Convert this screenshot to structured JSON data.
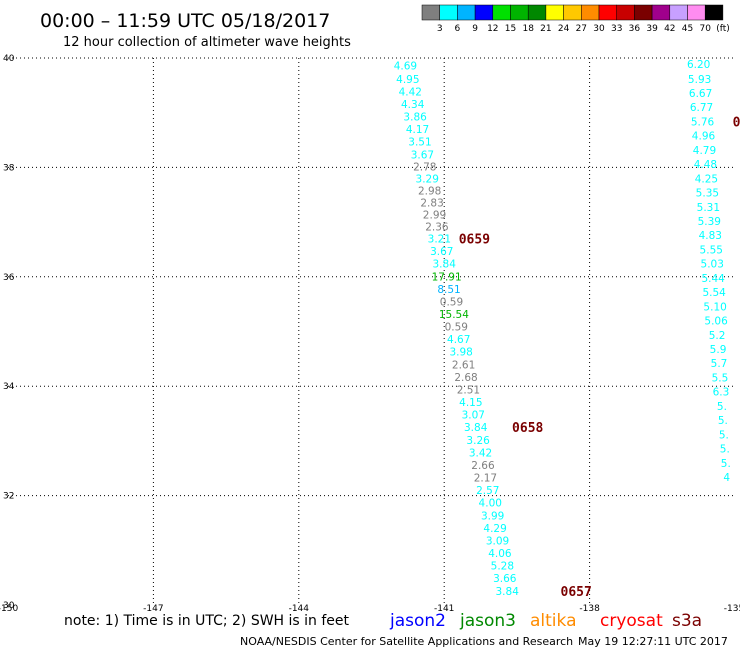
{
  "header": {
    "title": "00:00 – 11:59 UTC 05/18/2017",
    "subtitle": "12 hour collection of altimeter wave heights"
  },
  "colorbar": {
    "unit": "(ft)",
    "labels": [
      "3",
      "6",
      "9",
      "12",
      "15",
      "18",
      "21",
      "24",
      "27",
      "30",
      "33",
      "36",
      "39",
      "42",
      "45",
      "70"
    ],
    "colors": [
      "#7f7f7f",
      "#00ffff",
      "#00b4ff",
      "#0000ff",
      "#00e000",
      "#00b400",
      "#008800",
      "#ffff00",
      "#ffc800",
      "#ff8c00",
      "#ff0000",
      "#c80000",
      "#7a0000",
      "#a0008c",
      "#c8a0ff",
      "#ff8cf0",
      "#000000"
    ]
  },
  "chart_data": {
    "type": "scatter",
    "xlim": [
      -150,
      -135
    ],
    "ylim": [
      30,
      40
    ],
    "xticks": [
      "-150",
      "-147",
      "-144",
      "-141",
      "-138",
      "-135"
    ],
    "yticks": [
      "30",
      "32",
      "34",
      "36",
      "38",
      "40"
    ],
    "grid": true,
    "tracks": [
      {
        "name": "track-a",
        "points": [
          {
            "lon": -141.8,
            "lat": 39.86,
            "value": "4.69",
            "color": "#00ffff"
          },
          {
            "lon": -141.75,
            "lat": 39.62,
            "value": "4.95",
            "color": "#00ffff"
          },
          {
            "lon": -141.7,
            "lat": 39.39,
            "value": "4.42",
            "color": "#00ffff"
          },
          {
            "lon": -141.65,
            "lat": 39.16,
            "value": "4.34",
            "color": "#00ffff"
          },
          {
            "lon": -141.6,
            "lat": 38.93,
            "value": "3.86",
            "color": "#00ffff"
          },
          {
            "lon": -141.55,
            "lat": 38.7,
            "value": "4.17",
            "color": "#00ffff"
          },
          {
            "lon": -141.5,
            "lat": 38.47,
            "value": "3.51",
            "color": "#00ffff"
          },
          {
            "lon": -141.45,
            "lat": 38.24,
            "value": "3.67",
            "color": "#00ffff"
          },
          {
            "lon": -141.4,
            "lat": 38.02,
            "value": "2.78",
            "color": "#7f7f7f"
          },
          {
            "lon": -141.35,
            "lat": 37.8,
            "value": "3.29",
            "color": "#00ffff"
          },
          {
            "lon": -141.3,
            "lat": 37.58,
            "value": "2.98",
            "color": "#7f7f7f"
          },
          {
            "lon": -141.25,
            "lat": 37.36,
            "value": "2.83",
            "color": "#7f7f7f"
          },
          {
            "lon": -141.2,
            "lat": 37.14,
            "value": "2.99",
            "color": "#7f7f7f"
          },
          {
            "lon": -141.15,
            "lat": 36.92,
            "value": "2.36",
            "color": "#7f7f7f"
          },
          {
            "lon": -141.1,
            "lat": 36.7,
            "value": "3.21",
            "color": "#00ffff"
          },
          {
            "lon": -141.05,
            "lat": 36.47,
            "value": "3.67",
            "color": "#00ffff"
          },
          {
            "lon": -141.0,
            "lat": 36.24,
            "value": "3.84",
            "color": "#00ffff"
          },
          {
            "lon": -140.95,
            "lat": 36.01,
            "value": "17.91",
            "color": "#00b400"
          },
          {
            "lon": -140.9,
            "lat": 35.78,
            "value": "8.51",
            "color": "#00b4ff"
          },
          {
            "lon": -140.85,
            "lat": 35.55,
            "value": "0.59",
            "color": "#7f7f7f"
          },
          {
            "lon": -140.8,
            "lat": 35.32,
            "value": "15.54",
            "color": "#00b400"
          },
          {
            "lon": -140.75,
            "lat": 35.09,
            "value": "0.59",
            "color": "#7f7f7f"
          },
          {
            "lon": -140.7,
            "lat": 34.86,
            "value": "4.67",
            "color": "#00ffff"
          },
          {
            "lon": -140.65,
            "lat": 34.63,
            "value": "3.98",
            "color": "#00ffff"
          },
          {
            "lon": -140.6,
            "lat": 34.4,
            "value": "2.61",
            "color": "#7f7f7f"
          },
          {
            "lon": -140.55,
            "lat": 34.17,
            "value": "2.68",
            "color": "#7f7f7f"
          },
          {
            "lon": -140.5,
            "lat": 33.94,
            "value": "2.51",
            "color": "#7f7f7f"
          },
          {
            "lon": -140.45,
            "lat": 33.71,
            "value": "4.15",
            "color": "#00ffff"
          },
          {
            "lon": -140.4,
            "lat": 33.48,
            "value": "3.07",
            "color": "#00ffff"
          },
          {
            "lon": -140.35,
            "lat": 33.25,
            "value": "3.84",
            "color": "#00ffff"
          },
          {
            "lon": -140.3,
            "lat": 33.02,
            "value": "3.26",
            "color": "#00ffff"
          },
          {
            "lon": -140.25,
            "lat": 32.79,
            "value": "3.42",
            "color": "#00ffff"
          },
          {
            "lon": -140.2,
            "lat": 32.56,
            "value": "2.66",
            "color": "#7f7f7f"
          },
          {
            "lon": -140.15,
            "lat": 32.33,
            "value": "2.17",
            "color": "#7f7f7f"
          },
          {
            "lon": -140.1,
            "lat": 32.1,
            "value": "2.57",
            "color": "#00ffff"
          },
          {
            "lon": -140.05,
            "lat": 31.87,
            "value": "4.00",
            "color": "#00ffff"
          },
          {
            "lon": -140.0,
            "lat": 31.64,
            "value": "3.99",
            "color": "#00ffff"
          },
          {
            "lon": -139.95,
            "lat": 31.41,
            "value": "4.29",
            "color": "#00ffff"
          },
          {
            "lon": -139.9,
            "lat": 31.18,
            "value": "3.09",
            "color": "#00ffff"
          },
          {
            "lon": -139.85,
            "lat": 30.95,
            "value": "4.06",
            "color": "#00ffff"
          },
          {
            "lon": -139.8,
            "lat": 30.72,
            "value": "5.28",
            "color": "#00ffff"
          },
          {
            "lon": -139.75,
            "lat": 30.49,
            "value": "3.66",
            "color": "#00ffff"
          },
          {
            "lon": -139.7,
            "lat": 30.26,
            "value": "3.84",
            "color": "#00ffff"
          }
        ]
      },
      {
        "name": "track-b",
        "points": [
          {
            "lon": -135.75,
            "lat": 39.89,
            "value": "6.20",
            "color": "#00ffff"
          },
          {
            "lon": -135.73,
            "lat": 39.62,
            "value": "5.93",
            "color": "#00ffff"
          },
          {
            "lon": -135.71,
            "lat": 39.36,
            "value": "6.67",
            "color": "#00ffff"
          },
          {
            "lon": -135.69,
            "lat": 39.1,
            "value": "6.77",
            "color": "#00ffff"
          },
          {
            "lon": -135.67,
            "lat": 38.84,
            "value": "5.76",
            "color": "#00ffff"
          },
          {
            "lon": -135.65,
            "lat": 38.58,
            "value": "4.96",
            "color": "#00ffff"
          },
          {
            "lon": -135.63,
            "lat": 38.32,
            "value": "4.79",
            "color": "#00ffff"
          },
          {
            "lon": -135.61,
            "lat": 38.06,
            "value": "4.48",
            "color": "#00ffff"
          },
          {
            "lon": -135.59,
            "lat": 37.8,
            "value": "4.25",
            "color": "#00ffff"
          },
          {
            "lon": -135.57,
            "lat": 37.54,
            "value": "5.35",
            "color": "#00ffff"
          },
          {
            "lon": -135.55,
            "lat": 37.28,
            "value": "5.31",
            "color": "#00ffff"
          },
          {
            "lon": -135.53,
            "lat": 37.02,
            "value": "5.39",
            "color": "#00ffff"
          },
          {
            "lon": -135.51,
            "lat": 36.76,
            "value": "4.83",
            "color": "#00ffff"
          },
          {
            "lon": -135.49,
            "lat": 36.5,
            "value": "5.55",
            "color": "#00ffff"
          },
          {
            "lon": -135.47,
            "lat": 36.24,
            "value": "5.03",
            "color": "#00ffff"
          },
          {
            "lon": -135.45,
            "lat": 35.98,
            "value": "5.44",
            "color": "#00ffff"
          },
          {
            "lon": -135.43,
            "lat": 35.72,
            "value": "5.54",
            "color": "#00ffff"
          },
          {
            "lon": -135.41,
            "lat": 35.46,
            "value": "5.10",
            "color": "#00ffff"
          },
          {
            "lon": -135.39,
            "lat": 35.2,
            "value": "5.06",
            "color": "#00ffff"
          },
          {
            "lon": -135.37,
            "lat": 34.94,
            "value": "5.2",
            "color": "#00ffff"
          },
          {
            "lon": -135.35,
            "lat": 34.68,
            "value": "5.9",
            "color": "#00ffff"
          },
          {
            "lon": -135.33,
            "lat": 34.42,
            "value": "5.7",
            "color": "#00ffff"
          },
          {
            "lon": -135.31,
            "lat": 34.16,
            "value": "5.5",
            "color": "#00ffff"
          },
          {
            "lon": -135.29,
            "lat": 33.9,
            "value": "6.3",
            "color": "#00ffff"
          },
          {
            "lon": -135.27,
            "lat": 33.64,
            "value": "5.",
            "color": "#00ffff"
          },
          {
            "lon": -135.25,
            "lat": 33.38,
            "value": "5.",
            "color": "#00ffff"
          },
          {
            "lon": -135.23,
            "lat": 33.12,
            "value": "5.",
            "color": "#00ffff"
          },
          {
            "lon": -135.21,
            "lat": 32.86,
            "value": "5.",
            "color": "#00ffff"
          },
          {
            "lon": -135.19,
            "lat": 32.6,
            "value": "5.",
            "color": "#00ffff"
          },
          {
            "lon": -135.17,
            "lat": 32.34,
            "value": "4",
            "color": "#00ffff"
          }
        ]
      }
    ],
    "time_labels": [
      {
        "text": "0659",
        "lon": -140.7,
        "lat": 36.7
      },
      {
        "text": "0658",
        "lon": -139.6,
        "lat": 33.25
      },
      {
        "text": "0657",
        "lon": -138.6,
        "lat": 30.26
      },
      {
        "text": "0",
        "lon": -135.05,
        "lat": 38.84
      }
    ]
  },
  "note": "note: 1) Time is in UTC; 2) SWH is in feet",
  "satellites": [
    {
      "name": "jason2",
      "color": "#0000ff"
    },
    {
      "name": "jason3",
      "color": "#008800"
    },
    {
      "name": "altika",
      "color": "#ff8c00"
    },
    {
      "name": "cryosat",
      "color": "#ff0000"
    },
    {
      "name": "s3a",
      "color": "#7a0000"
    }
  ],
  "footer": {
    "credit": "NOAA/NESDIS Center for Satellite Applications and Research",
    "timestamp": "May 19 12:27:11 UTC 2017"
  }
}
